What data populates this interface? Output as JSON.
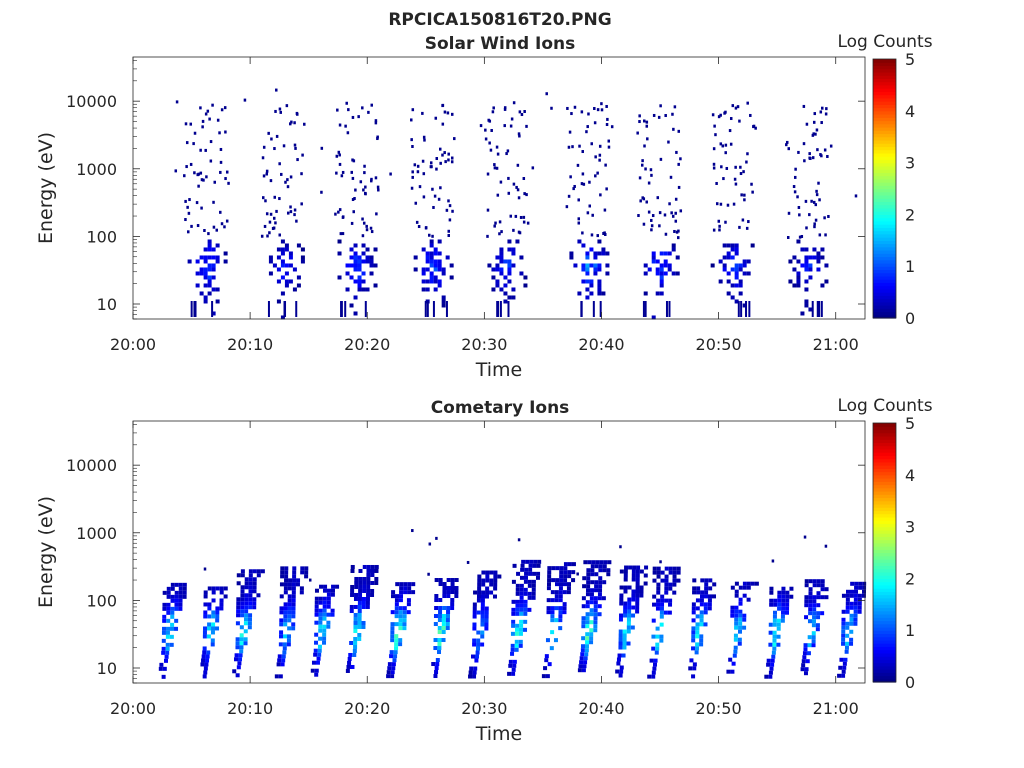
{
  "figure": {
    "title": "RPCICA150816T20.PNG"
  },
  "colormap": [
    "#00007f",
    "#0000ff",
    "#007fff",
    "#00ffff",
    "#7fff7f",
    "#ffff00",
    "#ff7f00",
    "#ff0000",
    "#7f0000"
  ],
  "chart_data": [
    {
      "type": "heatmap",
      "title": "Solar Wind Ions",
      "xlabel": "Time",
      "ylabel": "Energy (eV)",
      "x_ticks": [
        "20:00",
        "20:10",
        "20:20",
        "20:30",
        "20:40",
        "20:50",
        "21:00"
      ],
      "x_tick_minutes": [
        0,
        10,
        20,
        30,
        40,
        50,
        60
      ],
      "xlim_minutes": [
        0,
        62.5
      ],
      "y_scale": "log",
      "y_ticks": [
        "10",
        "100",
        "1000",
        "10000"
      ],
      "ylim": [
        6,
        45000
      ],
      "colorbar": {
        "label": "Log Counts",
        "range": [
          0,
          5
        ],
        "ticks": [
          "0",
          "1",
          "2",
          "3",
          "4",
          "5"
        ]
      },
      "bursts": [
        {
          "center_min": 6.2,
          "low_energy_peak": 1.2
        },
        {
          "center_min": 12.8,
          "low_energy_peak": 0.9
        },
        {
          "center_min": 19.0,
          "low_energy_peak": 1.1
        },
        {
          "center_min": 25.5,
          "low_energy_peak": 1.1
        },
        {
          "center_min": 31.8,
          "low_energy_peak": 1.0
        },
        {
          "center_min": 38.8,
          "low_energy_peak": 1.4
        },
        {
          "center_min": 44.8,
          "low_energy_peak": 1.3
        },
        {
          "center_min": 51.2,
          "low_energy_peak": 1.0
        },
        {
          "center_min": 57.5,
          "low_energy_peak": 0.9
        }
      ]
    },
    {
      "type": "heatmap",
      "title": "Cometary Ions",
      "xlabel": "Time",
      "ylabel": "Energy (eV)",
      "x_ticks": [
        "20:00",
        "20:10",
        "20:20",
        "20:30",
        "20:40",
        "20:50",
        "21:00"
      ],
      "x_tick_minutes": [
        0,
        10,
        20,
        30,
        40,
        50,
        60
      ],
      "xlim_minutes": [
        0,
        62.5
      ],
      "y_scale": "log",
      "y_ticks": [
        "10",
        "100",
        "1000",
        "10000"
      ],
      "ylim": [
        6,
        45000
      ],
      "colorbar": {
        "label": "Log Counts",
        "range": [
          0,
          5
        ],
        "ticks": [
          "0",
          "1",
          "2",
          "3",
          "4",
          "5"
        ]
      },
      "bursts": [
        {
          "center_min": 3.0,
          "peak": 1.6
        },
        {
          "center_min": 6.5,
          "peak": 1.6
        },
        {
          "center_min": 9.3,
          "peak": 1.7
        },
        {
          "center_min": 13.0,
          "peak": 1.4
        },
        {
          "center_min": 16.0,
          "peak": 1.6
        },
        {
          "center_min": 19.0,
          "peak": 1.8
        },
        {
          "center_min": 22.5,
          "peak": 2.2
        },
        {
          "center_min": 26.2,
          "peak": 2.0
        },
        {
          "center_min": 29.5,
          "peak": 1.2
        },
        {
          "center_min": 32.8,
          "peak": 1.8
        },
        {
          "center_min": 35.8,
          "peak": 1.5
        },
        {
          "center_min": 38.8,
          "peak": 2.0
        },
        {
          "center_min": 42.0,
          "peak": 1.6
        },
        {
          "center_min": 44.8,
          "peak": 1.8
        },
        {
          "center_min": 48.2,
          "peak": 1.6
        },
        {
          "center_min": 51.5,
          "peak": 1.5
        },
        {
          "center_min": 54.8,
          "peak": 1.8
        },
        {
          "center_min": 57.8,
          "peak": 1.5
        },
        {
          "center_min": 61.0,
          "peak": 1.5
        }
      ]
    }
  ]
}
